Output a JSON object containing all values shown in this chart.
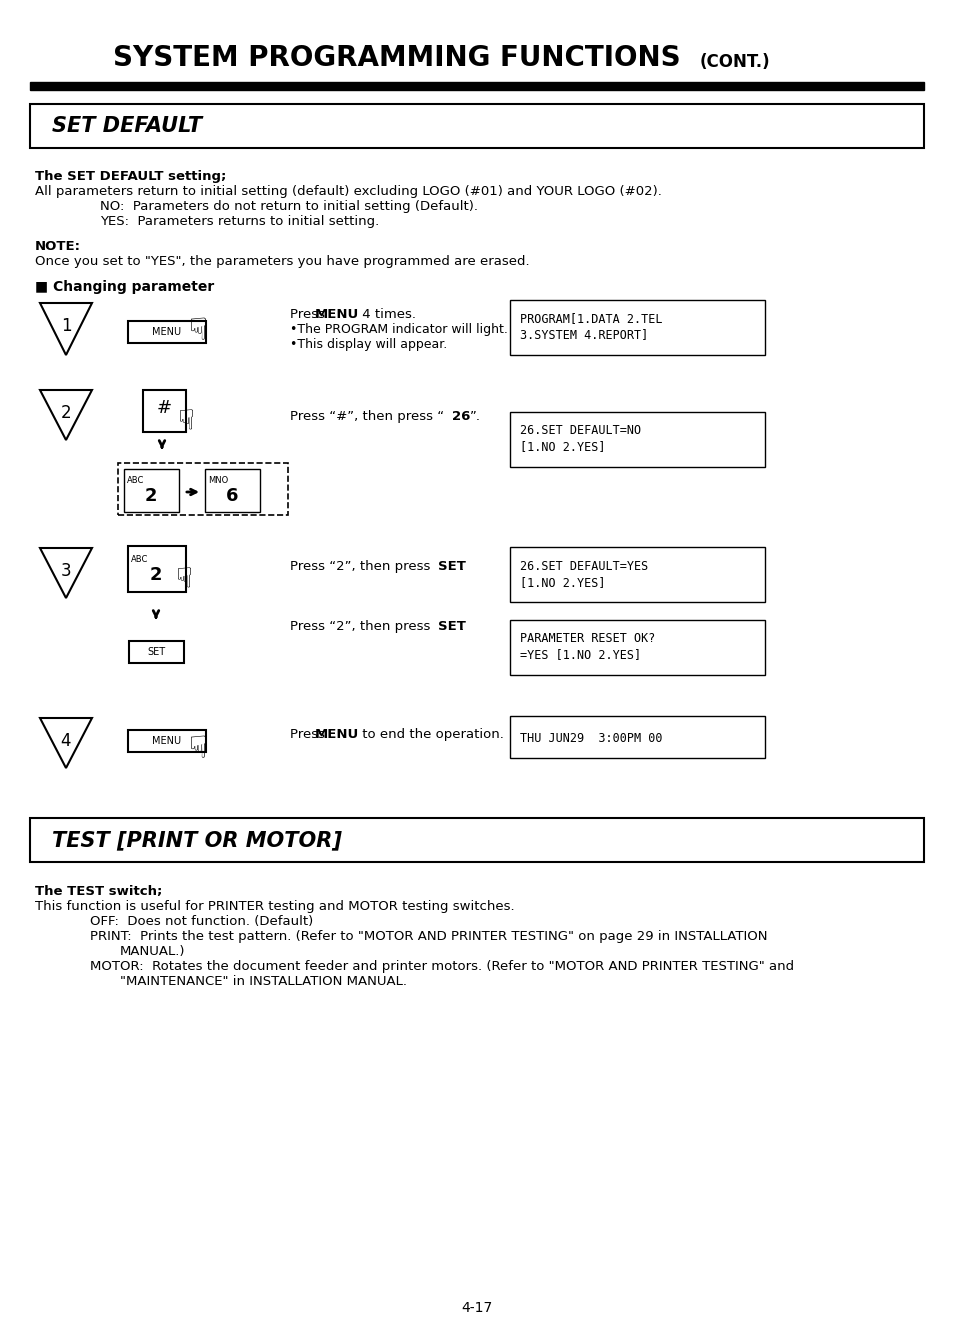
{
  "bg_color": "#ffffff",
  "page_width": 9.54,
  "page_height": 13.27,
  "title_main": "SYSTEM PROGRAMMING FUNCTIONS",
  "title_cont": "(CONT.)",
  "section1_label": "SET DEFAULT",
  "section1_heading": "The SET DEFAULT setting;",
  "note_heading": "NOTE:",
  "note_body": "Once you set to \"YES\", the parameters you have programmed are erased.",
  "changing_param": "■ Changing parameter",
  "step1_display_line1": "PROGRAM[1.DATA 2.TEL",
  "step1_display_line2": "3.SYSTEM 4.REPORT]",
  "step2_display_line1": "26.SET DEFAULT=NO",
  "step2_display_line2": "[1.NO 2.YES]",
  "step3_display1_line1": "26.SET DEFAULT=YES",
  "step3_display1_line2": "[1.NO 2.YES]",
  "step3_display2_line1": "PARAMETER RESET OK?",
  "step3_display2_line2": "=YES [1.NO 2.YES]",
  "step4_display": "THU JUN29  3:00PM 00",
  "section2_label": "TEST [PRINT OR MOTOR]",
  "section2_heading": "The TEST switch;",
  "page_num": "4-17"
}
